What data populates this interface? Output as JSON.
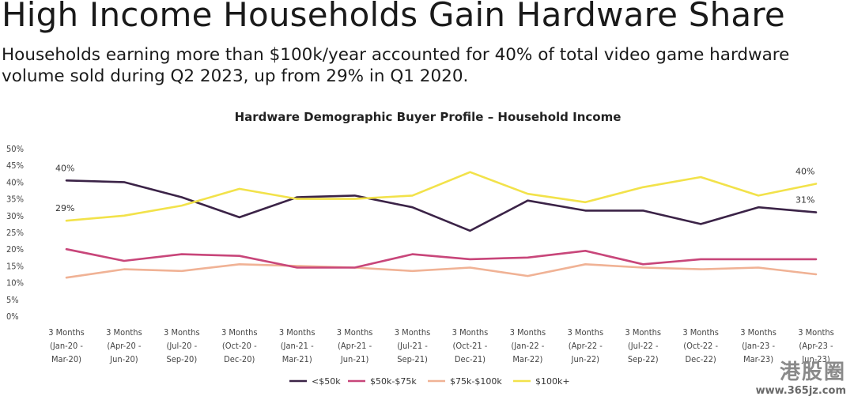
{
  "headline": "High Income Households Gain Hardware Share",
  "subtitle": "Households earning more than $100k/year accounted for 40% of total video game hardware volume sold during Q2 2023, up from 29% in Q1 2020.",
  "watermark": {
    "text": "港股圈",
    "url": "www.365jz.com"
  },
  "chart_data": {
    "type": "line",
    "title": "Hardware Demographic Buyer Profile – Household Income",
    "xlabel": "",
    "ylabel": "",
    "ylim": [
      0,
      50
    ],
    "y_ticks": [
      "0%",
      "5%",
      "10%",
      "15%",
      "20%",
      "25%",
      "30%",
      "35%",
      "40%",
      "45%",
      "50%"
    ],
    "grid": false,
    "legend_position": "bottom",
    "categories": [
      [
        "3 Months",
        "(Jan-20 -",
        "Mar-20)"
      ],
      [
        "3 Months",
        "(Apr-20 -",
        "Jun-20)"
      ],
      [
        "3 Months",
        "(Jul-20 -",
        "Sep-20)"
      ],
      [
        "3 Months",
        "(Oct-20 -",
        "Dec-20)"
      ],
      [
        "3 Months",
        "(Jan-21 -",
        "Mar-21)"
      ],
      [
        "3 Months",
        "(Apr-21 -",
        "Jun-21)"
      ],
      [
        "3 Months",
        "(Jul-21 -",
        "Sep-21)"
      ],
      [
        "3 Months",
        "(Oct-21 -",
        "Dec-21)"
      ],
      [
        "3 Months",
        "(Jan-22 -",
        "Mar-22)"
      ],
      [
        "3 Months",
        "(Apr-22 -",
        "Jun-22)"
      ],
      [
        "3 Months",
        "(Jul-22 -",
        "Sep-22)"
      ],
      [
        "3 Months",
        "(Oct-22 -",
        "Dec-22)"
      ],
      [
        "3 Months",
        "(Jan-23 -",
        "Mar-23)"
      ],
      [
        "3 Months",
        "(Apr-23 -",
        "Jun-23)"
      ]
    ],
    "series": [
      {
        "name": "<$50k",
        "color": "#3b2347",
        "values": [
          40.5,
          40.0,
          35.5,
          29.5,
          35.5,
          36.0,
          32.5,
          25.5,
          34.5,
          31.5,
          31.5,
          27.5,
          32.5,
          31.0
        ]
      },
      {
        "name": "$50k-$75k",
        "color": "#c8467a",
        "values": [
          20.0,
          16.5,
          18.5,
          18.0,
          14.5,
          14.5,
          18.5,
          17.0,
          17.5,
          19.5,
          15.5,
          17.0,
          17.0,
          17.0
        ]
      },
      {
        "name": "$75k-$100k",
        "color": "#f0b295",
        "values": [
          11.5,
          14.0,
          13.5,
          15.5,
          15.0,
          14.5,
          13.5,
          14.5,
          12.0,
          15.5,
          14.5,
          14.0,
          14.5,
          12.5
        ]
      },
      {
        "name": "$100k+",
        "color": "#f2e24a",
        "values": [
          28.5,
          30.0,
          33.0,
          38.0,
          35.0,
          35.0,
          36.0,
          43.0,
          36.5,
          34.0,
          38.5,
          41.5,
          36.0,
          39.5
        ]
      }
    ],
    "annotations": [
      {
        "text": "40%",
        "series": 0,
        "index": 0
      },
      {
        "text": "29%",
        "series": 3,
        "index": 0
      },
      {
        "text": "40%",
        "series": 3,
        "index": 13
      },
      {
        "text": "31%",
        "series": 0,
        "index": 13
      }
    ]
  }
}
